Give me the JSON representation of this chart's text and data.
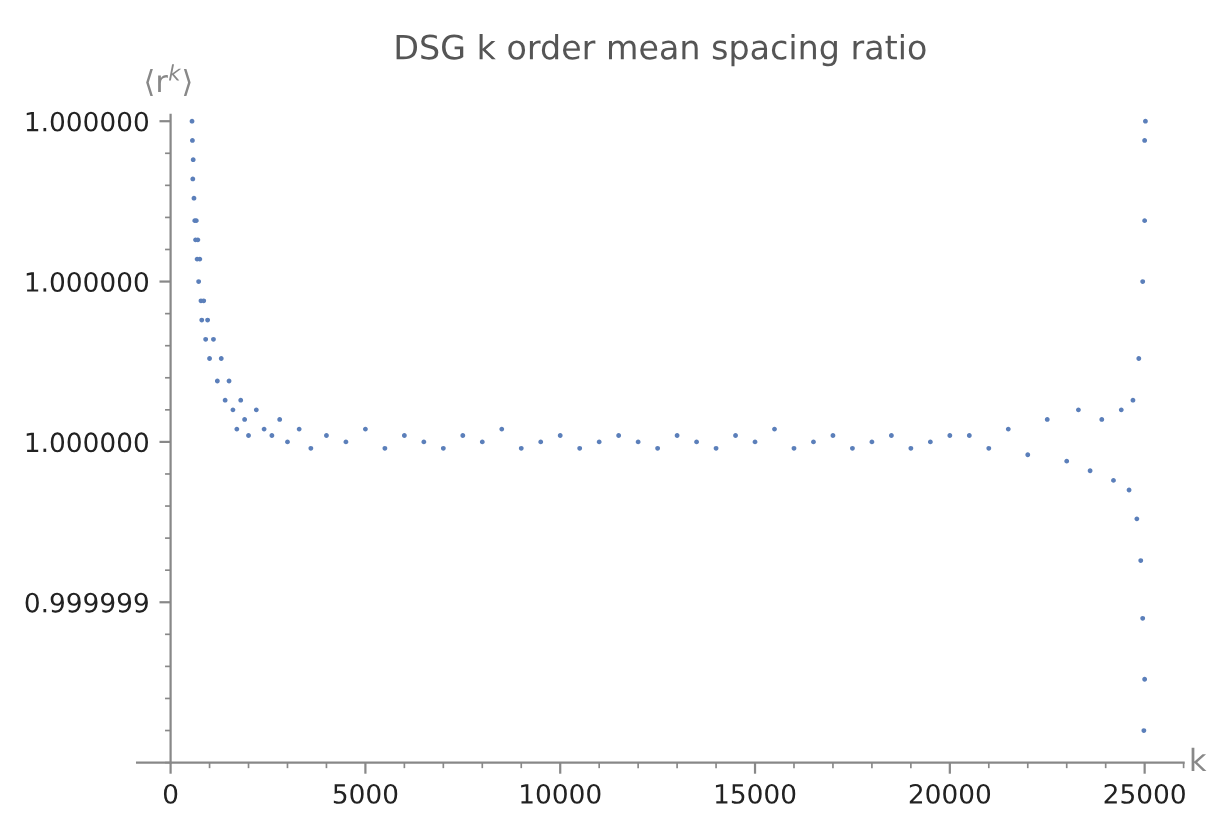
{
  "chart_data": {
    "type": "scatter",
    "title": "DSG k order mean spacing ratio",
    "xlabel": "k",
    "ylabel": "⟨r$^{k}$⟩",
    "xlim": [
      -860,
      26000
    ],
    "ylim": [
      0.9999985,
      1.00000052
    ],
    "xticks": [
      0,
      5000,
      10000,
      15000,
      20000,
      25000
    ],
    "yticks": [
      {
        "value": 0.999999,
        "label": "0.999999"
      },
      {
        "value": 0.9999995,
        "label": "1.000000"
      },
      {
        "value": 1.0,
        "label": "1.000000"
      },
      {
        "value": 1.0000005,
        "label": "1.000000"
      }
    ],
    "grid": false,
    "legend": false,
    "marker": "circle",
    "series": [
      {
        "color": "#5b7fba",
        "x": [
          550,
          560,
          570,
          580,
          600,
          620,
          640,
          660,
          680,
          700,
          720,
          750,
          780,
          800,
          850,
          900,
          950,
          1000,
          1100,
          1200,
          1300,
          1400,
          1500,
          1600,
          1700,
          1800,
          1900,
          2000,
          2200,
          2400,
          2600,
          2800,
          3000,
          3300,
          3600,
          4000,
          4500,
          5000,
          5500,
          6000,
          6500,
          7000,
          7500,
          8000,
          8500,
          9000,
          9500,
          10000,
          10500,
          11000,
          11500,
          12000,
          12500,
          13000,
          13500,
          14000,
          14500,
          15000,
          15500,
          16000,
          16500,
          17000,
          17500,
          18000,
          18500,
          19000,
          19500,
          20000,
          20500,
          21000,
          21500,
          22000,
          22500,
          23000,
          23300,
          23600,
          23900,
          24200,
          24400,
          24600,
          24700,
          24800,
          24850,
          24900,
          24950,
          24950,
          25000,
          25000,
          25000,
          24980,
          25020
        ],
        "values": [
          1.0000005,
          1.00000044,
          1.00000032,
          1.00000038,
          1.00000026,
          1.00000019,
          1.00000013,
          1.00000019,
          1.00000007,
          1.00000013,
          1.0,
          1.00000007,
          0.99999994,
          0.99999988,
          0.99999994,
          0.99999982,
          0.99999988,
          0.99999976,
          0.99999982,
          0.99999969,
          0.99999976,
          0.99999963,
          0.99999969,
          0.9999996,
          0.99999954,
          0.99999963,
          0.99999957,
          0.99999952,
          0.9999996,
          0.99999954,
          0.99999952,
          0.99999957,
          0.9999995,
          0.99999954,
          0.99999948,
          0.99999952,
          0.9999995,
          0.99999954,
          0.99999948,
          0.99999952,
          0.9999995,
          0.99999948,
          0.99999952,
          0.9999995,
          0.99999954,
          0.99999948,
          0.9999995,
          0.99999952,
          0.99999948,
          0.9999995,
          0.99999952,
          0.9999995,
          0.99999948,
          0.99999952,
          0.9999995,
          0.99999948,
          0.99999952,
          0.9999995,
          0.99999954,
          0.99999948,
          0.9999995,
          0.99999952,
          0.99999948,
          0.9999995,
          0.99999952,
          0.99999948,
          0.9999995,
          0.99999952,
          0.99999952,
          0.99999948,
          0.99999954,
          0.99999946,
          0.99999957,
          0.99999944,
          0.9999996,
          0.99999941,
          0.99999957,
          0.99999938,
          0.9999996,
          0.99999935,
          0.99999963,
          0.99999926,
          0.99999976,
          0.99999913,
          1.0,
          0.99999895,
          1.00000019,
          0.99999876,
          1.00000044,
          0.9999986,
          1.0000005
        ]
      }
    ]
  }
}
